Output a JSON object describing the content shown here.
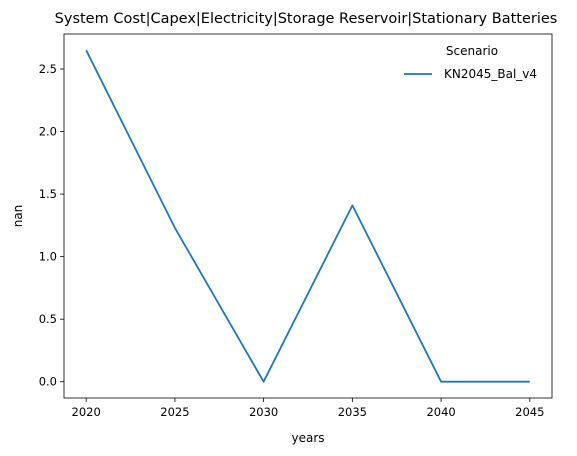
{
  "chart_data": {
    "type": "line",
    "title": "System Cost|Capex|Electricity|Storage Reservoir|Stationary Batteries",
    "xlabel": "years",
    "ylabel": "nan",
    "x": [
      2020,
      2025,
      2030,
      2035,
      2040,
      2045
    ],
    "xticks": [
      2020,
      2025,
      2030,
      2035,
      2040,
      2045
    ],
    "xlim": [
      2018.75,
      2046.25
    ],
    "yticks": [
      0.0,
      0.5,
      1.0,
      1.5,
      2.0,
      2.5
    ],
    "ytick_labels": [
      "0.0",
      "0.5",
      "1.0",
      "1.5",
      "2.0",
      "2.5"
    ],
    "ylim": [
      -0.13,
      2.78
    ],
    "grid": false,
    "legend": {
      "title": "Scenario",
      "placement": "top-right"
    },
    "series": [
      {
        "name": "KN2045_Bal_v4",
        "color": "#1f77b4",
        "values": [
          2.65,
          1.23,
          0.0,
          1.41,
          0.0,
          0.0
        ]
      }
    ]
  }
}
